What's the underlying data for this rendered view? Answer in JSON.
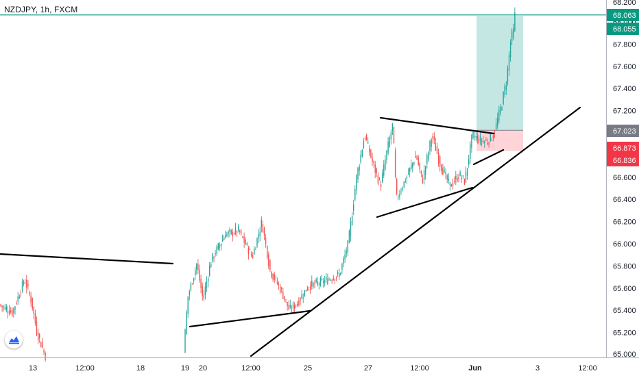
{
  "header": {
    "symbol": "NZDJPY, 1h, FXCM"
  },
  "colors": {
    "up": "#26a69a",
    "down": "#ef5350",
    "target_zone": "#b2dfdb",
    "stop_zone": "#ffcdd2",
    "current_price_line": "#089981",
    "badge_green": "#089981",
    "badge_gray": "#787b86",
    "badge_red": "#f23645",
    "trendline": "#000000",
    "axis_text": "#131722",
    "logo": "#2962ff"
  },
  "icons": {
    "logo": "tradingview-logo-icon"
  },
  "chart_data": {
    "type": "candlestick",
    "instrument": "NZDJPY",
    "timeframe": "1h",
    "source": "FXCM",
    "y_axis": {
      "ticks": [
        "68.000",
        "67.800",
        "67.600",
        "67.400",
        "67.200",
        "67.000",
        "66.800",
        "66.600",
        "66.400",
        "66.200",
        "66.000",
        "65.800",
        "65.600",
        "65.400",
        "65.200",
        "65.000"
      ],
      "range": [
        64.98,
        68.09
      ],
      "top_partial_tick": "68.200",
      "bottom_partial_tick": "65.000"
    },
    "x_axis": {
      "ticks": [
        "13",
        "12:00",
        "18",
        "19",
        "20",
        "12:00",
        "25",
        "27",
        "12:00",
        "Jun",
        "3",
        "12:00"
      ],
      "bold_tick": "Jun"
    },
    "price_labels": [
      {
        "value": "68.063",
        "kind": "last_price",
        "color": "green"
      },
      {
        "value": "68.055",
        "kind": "target",
        "color": "green"
      },
      {
        "value": "67.023",
        "kind": "entry",
        "color": "gray"
      },
      {
        "value": "66.873",
        "kind": "stop",
        "color": "red"
      },
      {
        "value": "66.836",
        "kind": "stop",
        "color": "red"
      }
    ],
    "long_position": {
      "entry": 67.023,
      "target": 68.055,
      "stop": 66.836
    },
    "trendlines": [
      {
        "from": [
          "May 12",
          65.92
        ],
        "to": [
          "May 19",
          65.83
        ]
      },
      {
        "from": [
          "May 19 12:00",
          65.26
        ],
        "to": [
          "May 22",
          65.4
        ]
      },
      {
        "from": [
          "May 21",
          64.98
        ],
        "to": [
          "Jun 4",
          67.23
        ]
      },
      {
        "from": [
          "May 27 12:00",
          66.25
        ],
        "to": [
          "May 31",
          66.51
        ]
      },
      {
        "from": [
          "May 27 12:00",
          67.12
        ],
        "to": [
          "Jun 1",
          66.98
        ]
      },
      {
        "from": [
          "Jun 1",
          66.72
        ],
        "to": [
          "Jun 1 12:00",
          66.82
        ]
      }
    ],
    "price_path": [
      [
        1,
        65.45
      ],
      [
        20,
        65.38
      ],
      [
        38,
        65.68
      ],
      [
        48,
        65.48
      ],
      [
        56,
        65.2
      ],
      [
        68,
        64.99
      ],
      [
        270,
        65.03
      ],
      [
        276,
        65.52
      ],
      [
        289,
        65.82
      ],
      [
        298,
        65.5
      ],
      [
        310,
        65.85
      ],
      [
        330,
        66.08
      ],
      [
        350,
        66.12
      ],
      [
        370,
        65.88
      ],
      [
        384,
        66.2
      ],
      [
        396,
        65.76
      ],
      [
        412,
        65.58
      ],
      [
        424,
        65.4
      ],
      [
        436,
        65.47
      ],
      [
        452,
        65.62
      ],
      [
        474,
        65.66
      ],
      [
        497,
        65.72
      ],
      [
        510,
        66.0
      ],
      [
        522,
        66.6
      ],
      [
        534,
        66.98
      ],
      [
        546,
        66.72
      ],
      [
        557,
        66.52
      ],
      [
        566,
        66.82
      ],
      [
        575,
        67.08
      ],
      [
        580,
        66.4
      ],
      [
        595,
        66.6
      ],
      [
        609,
        66.8
      ],
      [
        618,
        66.56
      ],
      [
        632,
        66.98
      ],
      [
        644,
        66.72
      ],
      [
        658,
        66.52
      ],
      [
        672,
        66.62
      ],
      [
        680,
        66.56
      ],
      [
        691,
        66.98
      ],
      [
        703,
        66.93
      ],
      [
        713,
        66.92
      ],
      [
        722,
        66.98
      ],
      [
        727,
        67.1
      ],
      [
        733,
        67.24
      ],
      [
        741,
        67.48
      ],
      [
        747,
        67.84
      ],
      [
        751,
        67.92
      ],
      [
        753,
        68.06
      ]
    ]
  }
}
